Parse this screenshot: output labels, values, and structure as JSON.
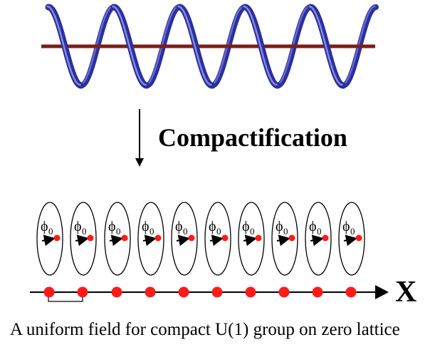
{
  "diagram": {
    "heading": "Compactification",
    "axis_label": "X",
    "caption": "A uniform field for compact U(1) group on zero lattice",
    "field_symbol": "ϕ",
    "field_subscript": "0",
    "colors": {
      "helix": "#2b2f9e",
      "helix_highlight": "#8f95e6",
      "rod": "#7a1f1a",
      "lattice_point": "#ff1a1a",
      "line": "#000000"
    },
    "helix_turns": 5,
    "lattice_point_count": 10
  }
}
